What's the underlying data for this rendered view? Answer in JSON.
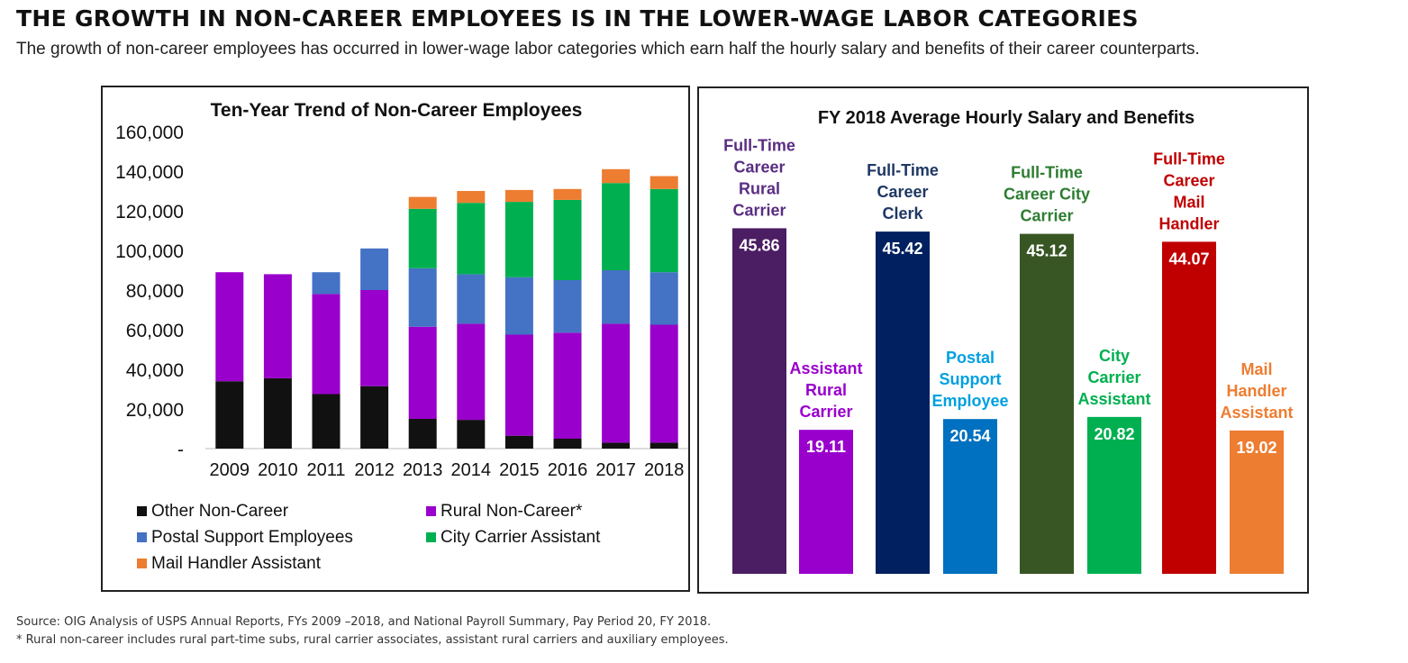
{
  "headline": "THE GROWTH IN NON-CAREER EMPLOYEES IS IN THE LOWER-WAGE LABOR CATEGORIES",
  "subheadline": "The growth of non-career employees has occurred in lower-wage labor categories which earn half the hourly salary and benefits of their career counterparts.",
  "footnotes": {
    "source": "Source: OIG Analysis of USPS Annual Reports, FYs 2009 –2018, and National Payroll Summary, Pay Period 20, FY 2018.",
    "note": "* Rural non-career includes rural part-time subs, rural carrier associates, assistant rural carriers and auxiliary employees."
  },
  "chart_data": [
    {
      "type": "bar",
      "stacked": true,
      "title": "Ten-Year Trend of Non-Career Employees",
      "categories": [
        "2009",
        "2010",
        "2011",
        "2012",
        "2013",
        "2014",
        "2015",
        "2016",
        "2017",
        "2018"
      ],
      "ylim": [
        0,
        160000
      ],
      "yticks": [
        0,
        20000,
        40000,
        60000,
        80000,
        100000,
        120000,
        140000,
        160000
      ],
      "ytick_labels": [
        "-",
        "20,000",
        "40,000",
        "60,000",
        "80,000",
        "100,000",
        "120,000",
        "140,000",
        "160,000"
      ],
      "legend_position": "bottom",
      "series": [
        {
          "name": "Other Non-Career",
          "color": "#111111",
          "values": [
            34000,
            35500,
            27500,
            31500,
            15000,
            14500,
            6500,
            5000,
            3000,
            3000
          ]
        },
        {
          "name": "Rural Non-Career*",
          "color": "#9900cc",
          "values": [
            55000,
            52500,
            50500,
            48500,
            46500,
            48500,
            51000,
            53500,
            60000,
            59500
          ]
        },
        {
          "name": "Postal Support Employees",
          "color": "#4472c4",
          "values": [
            0,
            0,
            11000,
            21000,
            29500,
            25000,
            29000,
            26500,
            27000,
            26500
          ]
        },
        {
          "name": "City Carrier Assistant",
          "color": "#00b050",
          "values": [
            0,
            0,
            0,
            0,
            30000,
            36000,
            38000,
            40500,
            44000,
            42000
          ]
        },
        {
          "name": "Mail Handler Assistant",
          "color": "#ed7d31",
          "values": [
            0,
            0,
            0,
            0,
            6000,
            6000,
            6000,
            5500,
            7000,
            6500
          ]
        }
      ]
    },
    {
      "type": "bar",
      "title": "FY 2018 Average Hourly Salary and Benefits",
      "ylim": [
        0,
        50
      ],
      "bars": [
        {
          "label": "Full-Time Career Rural Carrier",
          "label_lines": [
            "Full-Time",
            "Career",
            "Rural",
            "Carrier"
          ],
          "value": 45.86,
          "display": "45.86",
          "color": "#4b1d63",
          "label_color": "#5a2d82"
        },
        {
          "label": "Assistant Rural Carrier",
          "label_lines": [
            "Assistant",
            "Rural",
            "Carrier"
          ],
          "value": 19.11,
          "display": "19.11",
          "color": "#9900cc",
          "label_color": "#9900cc"
        },
        {
          "label": "Full-Time Career Clerk",
          "label_lines": [
            "Full-Time",
            "Career",
            "Clerk"
          ],
          "value": 45.42,
          "display": "45.42",
          "color": "#002060",
          "label_color": "#1f3864"
        },
        {
          "label": "Postal Support Employee",
          "label_lines": [
            "Postal",
            "Support",
            "Employee"
          ],
          "value": 20.54,
          "display": "20.54",
          "color": "#0070c0",
          "label_color": "#00a0e0"
        },
        {
          "label": "Full-Time Career City Carrier",
          "label_lines": [
            "Full-Time",
            "Career City",
            "Carrier"
          ],
          "value": 45.12,
          "display": "45.12",
          "color": "#375623",
          "label_color": "#2e7d32"
        },
        {
          "label": "City Carrier Assistant",
          "label_lines": [
            "City",
            "Carrier",
            "Assistant"
          ],
          "value": 20.82,
          "display": "20.82",
          "color": "#00b050",
          "label_color": "#00b050"
        },
        {
          "label": "Full-Time Career Mail Handler",
          "label_lines": [
            "Full-Time",
            "Career",
            "Mail",
            "Handler"
          ],
          "value": 44.07,
          "display": "44.07",
          "color": "#c00000",
          "label_color": "#c00000"
        },
        {
          "label": "Mail Handler Assistant",
          "label_lines": [
            "Mail",
            "Handler",
            "Assistant"
          ],
          "value": 19.02,
          "display": "19.02",
          "color": "#ed7d31",
          "label_color": "#ed7d31"
        }
      ]
    }
  ]
}
